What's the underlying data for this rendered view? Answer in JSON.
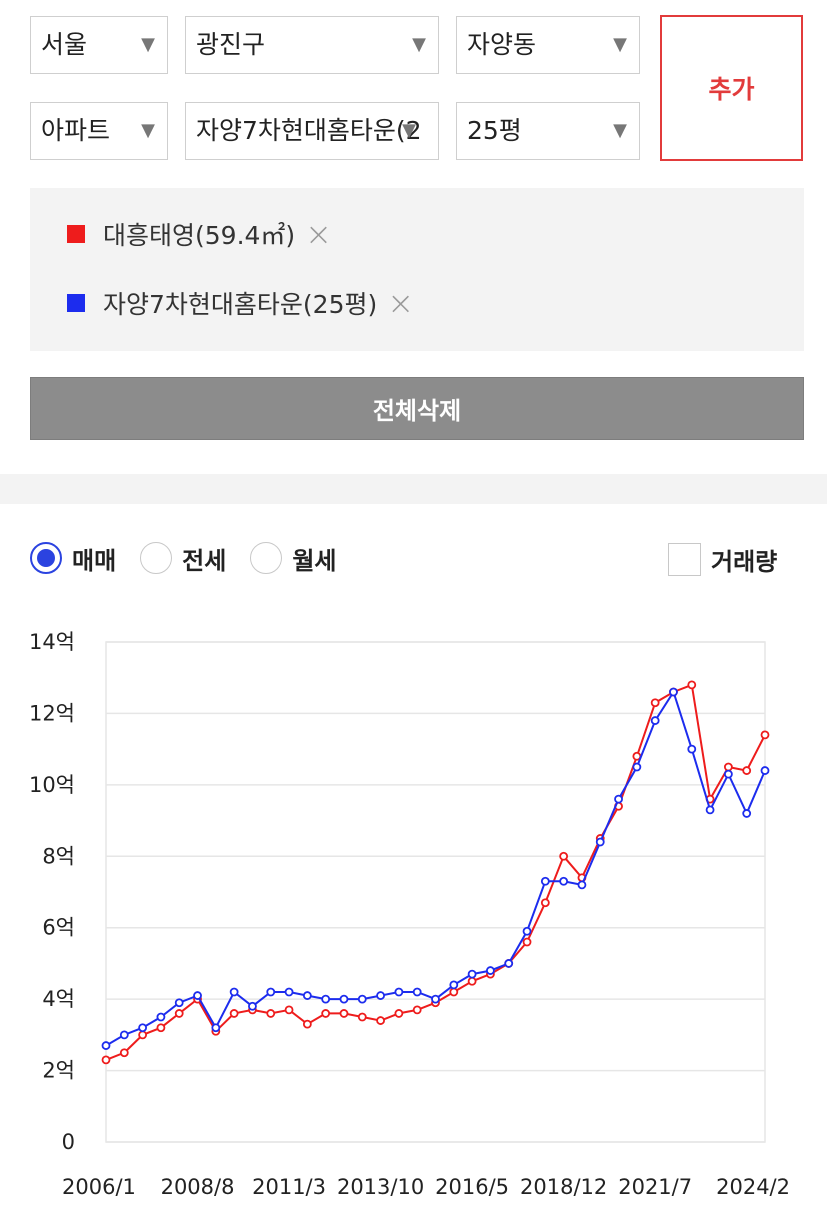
{
  "filters": {
    "region": "서울",
    "district": "광진구",
    "dong": "자양동",
    "type": "아파트",
    "complex": "자양7차현대홈타운(2",
    "size": "25평",
    "add_label": "추가"
  },
  "legend": {
    "items": [
      {
        "label": "대흥태영(59.4㎡)",
        "color": "#ee1c1c"
      },
      {
        "label": "자양7차현대홈타운(25평)",
        "color": "#1c2cee"
      }
    ],
    "remove_icon": "×"
  },
  "clear_all_label": "전체삭제",
  "tabs": {
    "options": [
      "매매",
      "전세",
      "월세"
    ],
    "selected": "매매"
  },
  "volume_label": "거래량",
  "volume_checked": false,
  "chart_data": {
    "type": "line",
    "x": [
      "2006/1",
      "2006/7",
      "2007/1",
      "2007/7",
      "2008/1",
      "2008/8",
      "2009/1",
      "2009/7",
      "2010/1",
      "2010/7",
      "2011/3",
      "2011/9",
      "2012/3",
      "2012/9",
      "2013/3",
      "2013/10",
      "2014/4",
      "2014/10",
      "2015/4",
      "2015/10",
      "2016/5",
      "2016/11",
      "2017/5",
      "2017/11",
      "2018/5",
      "2018/12",
      "2019/6",
      "2019/12",
      "2020/6",
      "2020/12",
      "2021/7",
      "2022/1",
      "2022/7",
      "2023/1",
      "2023/7",
      "2024/2",
      "2024/4"
    ],
    "series": [
      {
        "name": "대흥태영(59.4㎡)",
        "color": "#ee1c1c",
        "values": [
          2.3,
          2.5,
          3.0,
          3.2,
          3.6,
          4.0,
          3.1,
          3.6,
          3.7,
          3.6,
          3.7,
          3.3,
          3.6,
          3.6,
          3.5,
          3.4,
          3.6,
          3.7,
          3.9,
          4.2,
          4.5,
          4.7,
          5.0,
          5.6,
          6.7,
          8.0,
          7.4,
          8.5,
          9.4,
          10.8,
          12.3,
          12.6,
          12.8,
          9.6,
          10.5,
          10.4,
          11.4
        ]
      },
      {
        "name": "자양7차현대홈타운(25평)",
        "color": "#1c2cee",
        "values": [
          2.7,
          3.0,
          3.2,
          3.5,
          3.9,
          4.1,
          3.2,
          4.2,
          3.8,
          4.2,
          4.2,
          4.1,
          4.0,
          4.0,
          4.0,
          4.1,
          4.2,
          4.2,
          4.0,
          4.4,
          4.7,
          4.8,
          5.0,
          5.9,
          7.3,
          7.3,
          7.2,
          8.4,
          9.6,
          10.5,
          11.8,
          12.6,
          11.0,
          9.3,
          10.3,
          9.2,
          10.4
        ]
      }
    ],
    "x_tick_labels": [
      "2006/1",
      "2008/8",
      "2011/3",
      "2013/10",
      "2016/5",
      "2018/12",
      "2021/7",
      "2024/2"
    ],
    "y_tick_labels": [
      "0",
      "2억",
      "4억",
      "6억",
      "8억",
      "10억",
      "12억",
      "14억"
    ],
    "ylim": [
      0,
      14
    ],
    "grid": true
  }
}
